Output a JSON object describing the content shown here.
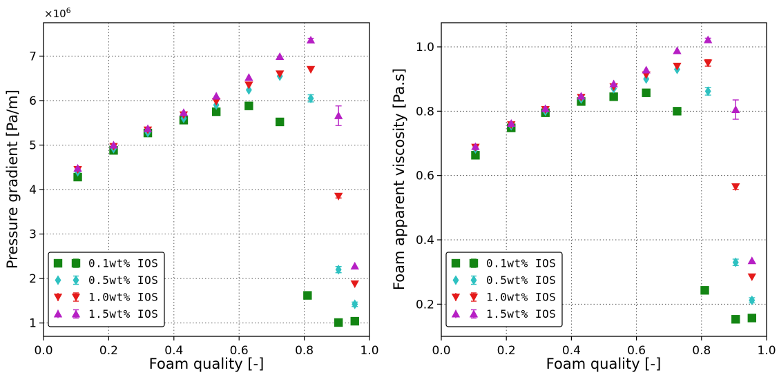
{
  "chart_data": [
    {
      "type": "scatter",
      "title": "",
      "xlabel": "Foam quality [-]",
      "ylabel": "Pressure gradient [Pa/m]",
      "y_multiplier_text": "×10",
      "y_multiplier_exp": "6",
      "xlim": [
        0.0,
        1.0
      ],
      "ylim": [
        0.7,
        7.75
      ],
      "xticks": [
        0.0,
        0.2,
        0.4,
        0.6,
        0.8,
        1.0
      ],
      "xtick_labels": [
        "0.0",
        "0.2",
        "0.4",
        "0.6",
        "0.8",
        "1.0"
      ],
      "yticks": [
        1,
        2,
        3,
        4,
        5,
        6,
        7
      ],
      "ytick_labels": [
        "1",
        "2",
        "3",
        "4",
        "5",
        "6",
        "7"
      ],
      "grid": true,
      "legend_position": "lower-left",
      "series": [
        {
          "name": "0.1wt% IOS",
          "marker": "square",
          "color": "#138513",
          "x": [
            0.105,
            0.215,
            0.32,
            0.43,
            0.53,
            0.63,
            0.725,
            0.81,
            0.905,
            0.955
          ],
          "y": [
            4.28,
            4.88,
            5.27,
            5.56,
            5.75,
            5.88,
            5.52,
            1.62,
            1.01,
            1.04
          ],
          "err": [
            0,
            0,
            0,
            0,
            0,
            0,
            0,
            0,
            0,
            0
          ]
        },
        {
          "name": "0.5wt% IOS",
          "marker": "diamond",
          "color": "#2ec1c1",
          "x": [
            0.105,
            0.215,
            0.32,
            0.43,
            0.53,
            0.63,
            0.725,
            0.82,
            0.905,
            0.955
          ],
          "y": [
            4.4,
            4.92,
            5.28,
            5.6,
            5.9,
            6.24,
            6.55,
            6.05,
            2.2,
            1.42
          ],
          "err": [
            0,
            0,
            0,
            0,
            0,
            0,
            0,
            0.08,
            0.07,
            0.05
          ]
        },
        {
          "name": "1.0wt% IOS",
          "marker": "triangle-down",
          "color": "#e41a1a",
          "x": [
            0.105,
            0.215,
            0.32,
            0.43,
            0.53,
            0.63,
            0.725,
            0.82,
            0.905,
            0.955
          ],
          "y": [
            4.45,
            4.97,
            5.34,
            5.68,
            5.98,
            6.35,
            6.6,
            6.7,
            3.85,
            1.88
          ],
          "err": [
            0,
            0,
            0,
            0,
            0,
            0,
            0,
            0,
            0.04,
            0
          ]
        },
        {
          "name": "1.5wt% IOS",
          "marker": "triangle-up",
          "color": "#b61fc4",
          "x": [
            0.105,
            0.215,
            0.32,
            0.43,
            0.53,
            0.63,
            0.725,
            0.82,
            0.905,
            0.955
          ],
          "y": [
            4.48,
            5.0,
            5.37,
            5.73,
            6.1,
            6.52,
            6.99,
            7.36,
            5.66,
            2.28
          ],
          "err": [
            0,
            0,
            0,
            0,
            0,
            0,
            0,
            0.04,
            0.22,
            0
          ]
        }
      ]
    },
    {
      "type": "scatter",
      "title": "",
      "xlabel": "Foam quality [-]",
      "ylabel": "Foam apparent viscosity [Pa.s]",
      "xlim": [
        0.0,
        1.0
      ],
      "ylim": [
        0.1,
        1.075
      ],
      "xticks": [
        0.0,
        0.2,
        0.4,
        0.6,
        0.8,
        1.0
      ],
      "xtick_labels": [
        "0.0",
        "0.2",
        "0.4",
        "0.6",
        "0.8",
        "1.0"
      ],
      "yticks": [
        0.2,
        0.4,
        0.6,
        0.8,
        1.0
      ],
      "ytick_labels": [
        "0.2",
        "0.4",
        "0.6",
        "0.8",
        "1.0"
      ],
      "grid": true,
      "legend_position": "lower-left",
      "series": [
        {
          "name": "0.1wt% IOS",
          "marker": "square",
          "color": "#138513",
          "x": [
            0.105,
            0.215,
            0.32,
            0.43,
            0.53,
            0.63,
            0.725,
            0.81,
            0.905,
            0.955
          ],
          "y": [
            0.663,
            0.748,
            0.795,
            0.83,
            0.845,
            0.857,
            0.8,
            0.243,
            0.153,
            0.157
          ],
          "err": [
            0,
            0,
            0,
            0,
            0,
            0,
            0,
            0,
            0,
            0
          ]
        },
        {
          "name": "0.5wt% IOS",
          "marker": "diamond",
          "color": "#2ec1c1",
          "x": [
            0.105,
            0.215,
            0.32,
            0.43,
            0.53,
            0.63,
            0.725,
            0.82,
            0.905,
            0.955
          ],
          "y": [
            0.683,
            0.755,
            0.8,
            0.838,
            0.87,
            0.9,
            0.93,
            0.862,
            0.33,
            0.212
          ],
          "err": [
            0,
            0,
            0,
            0,
            0,
            0,
            0,
            0.012,
            0.01,
            0.008
          ]
        },
        {
          "name": "1.0wt% IOS",
          "marker": "triangle-down",
          "color": "#e41a1a",
          "x": [
            0.105,
            0.215,
            0.32,
            0.43,
            0.53,
            0.63,
            0.725,
            0.82,
            0.905,
            0.955
          ],
          "y": [
            0.688,
            0.758,
            0.805,
            0.843,
            0.876,
            0.913,
            0.94,
            0.95,
            0.565,
            0.285
          ],
          "err": [
            0,
            0,
            0,
            0,
            0,
            0,
            0,
            0.01,
            0.008,
            0
          ]
        },
        {
          "name": "1.5wt% IOS",
          "marker": "triangle-up",
          "color": "#b61fc4",
          "x": [
            0.105,
            0.215,
            0.32,
            0.43,
            0.53,
            0.63,
            0.725,
            0.82,
            0.905,
            0.955
          ],
          "y": [
            0.69,
            0.762,
            0.808,
            0.847,
            0.885,
            0.928,
            0.988,
            1.022,
            0.805,
            0.335
          ],
          "err": [
            0,
            0,
            0,
            0,
            0,
            0,
            0,
            0.005,
            0.03,
            0
          ]
        }
      ]
    }
  ]
}
